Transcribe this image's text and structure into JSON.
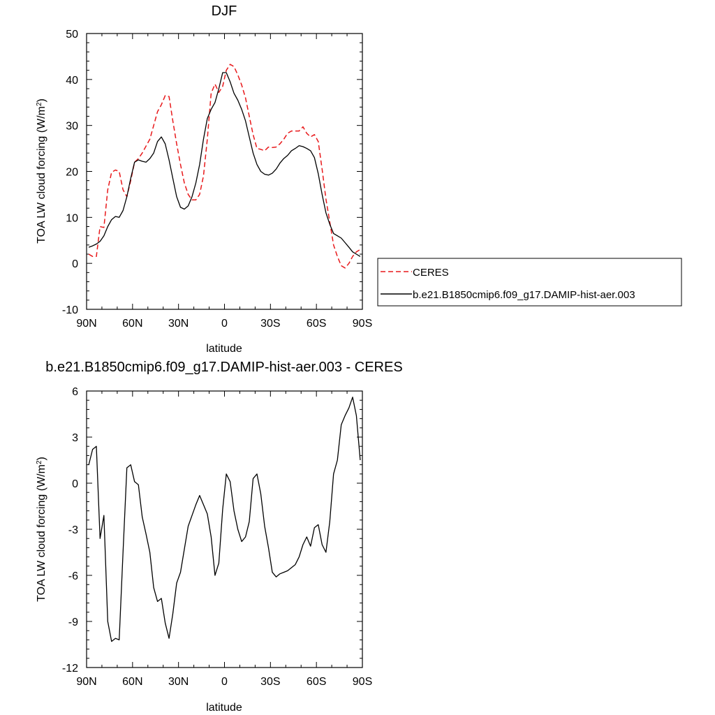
{
  "chart_data": [
    {
      "type": "line",
      "title": "DJF",
      "xlabel": "latitude",
      "ylabel": "TOA LW cloud forcing (W/m",
      "ylabel_sup": "2",
      "ylabel_end": ")",
      "xlim": [
        90,
        -90
      ],
      "ylim": [
        -10,
        50
      ],
      "xticks": [
        {
          "value": 90,
          "label": "90N"
        },
        {
          "value": 60,
          "label": "60N"
        },
        {
          "value": 30,
          "label": "30N"
        },
        {
          "value": 0,
          "label": "0"
        },
        {
          "value": -30,
          "label": "30S"
        },
        {
          "value": -60,
          "label": "60S"
        },
        {
          "value": -90,
          "label": "90S"
        }
      ],
      "yticks": [
        {
          "value": 50,
          "label": "50"
        },
        {
          "value": 40,
          "label": "40"
        },
        {
          "value": 30,
          "label": "30"
        },
        {
          "value": 20,
          "label": "20"
        },
        {
          "value": 10,
          "label": "10"
        },
        {
          "value": 0,
          "label": "0"
        },
        {
          "value": -10,
          "label": "-10"
        }
      ],
      "legend": {
        "placement": "right",
        "entries": [
          {
            "label": "CERES",
            "color": "#e8191b",
            "dash": "dashed"
          },
          {
            "label": "b.e21.B1850cmip6.f09_g17.DAMIP-hist-aer.003",
            "color": "#000000",
            "dash": "solid"
          }
        ]
      },
      "series": [
        {
          "name": "CERES",
          "color": "#e8191b",
          "dash": "dashed",
          "x": [
            88.6,
            86.1,
            83.6,
            81.2,
            78.7,
            76.2,
            73.7,
            71.2,
            68.7,
            66.2,
            63.7,
            61.2,
            58.7,
            56.2,
            53.7,
            51.2,
            48.7,
            46.2,
            43.7,
            41.2,
            38.7,
            36.2,
            33.7,
            31.2,
            28.7,
            26.2,
            23.7,
            21.2,
            18.7,
            16.2,
            13.7,
            11.2,
            8.7,
            6.2,
            3.7,
            1.2,
            -1.2,
            -3.7,
            -6.2,
            -8.7,
            -11.2,
            -13.7,
            -16.2,
            -18.7,
            -21.2,
            -23.7,
            -26.2,
            -28.7,
            -31.2,
            -33.7,
            -36.2,
            -38.7,
            -41.2,
            -43.7,
            -46.2,
            -48.7,
            -51.2,
            -53.7,
            -56.2,
            -58.7,
            -61.2,
            -63.7,
            -66.2,
            -68.7,
            -71.2,
            -73.7,
            -76.2,
            -78.7,
            -81.2,
            -83.6,
            -86.1,
            -88.6
          ],
          "values": [
            2.0,
            1.5,
            1.5,
            8.0,
            7.8,
            16.0,
            19.8,
            20.3,
            20.0,
            16.0,
            14.5,
            18.0,
            22.0,
            22.8,
            24.0,
            25.5,
            27.0,
            30.0,
            33.0,
            34.5,
            36.5,
            36.3,
            31.0,
            26.0,
            21.5,
            17.5,
            15.0,
            13.8,
            13.8,
            15.0,
            19.0,
            27.0,
            37.0,
            39.0,
            37.2,
            38.5,
            42.0,
            43.3,
            42.8,
            41.0,
            38.8,
            36.0,
            32.0,
            28.0,
            25.0,
            24.8,
            24.5,
            25.3,
            25.2,
            25.3,
            26.0,
            27.0,
            28.3,
            28.8,
            28.8,
            28.8,
            29.7,
            28.3,
            27.5,
            28.0,
            26.5,
            20.5,
            14.0,
            9.0,
            4.0,
            1.5,
            -0.5,
            -1.0,
            0.0,
            1.5,
            2.5,
            3.0
          ]
        },
        {
          "name": "b.e21.B1850cmip6.f09_g17.DAMIP-hist-aer.003",
          "color": "#000000",
          "dash": "solid",
          "x": [
            88.6,
            86.1,
            83.6,
            81.2,
            78.7,
            76.2,
            73.7,
            71.2,
            68.7,
            66.2,
            63.7,
            61.2,
            58.7,
            56.2,
            53.7,
            51.2,
            48.7,
            46.2,
            43.7,
            41.2,
            38.7,
            36.2,
            33.7,
            31.2,
            28.7,
            26.2,
            23.7,
            21.2,
            18.7,
            16.2,
            13.7,
            11.2,
            8.7,
            6.2,
            3.7,
            1.2,
            -1.2,
            -3.7,
            -6.2,
            -8.7,
            -11.2,
            -13.7,
            -16.2,
            -18.7,
            -21.2,
            -23.7,
            -26.2,
            -28.7,
            -31.2,
            -33.7,
            -36.2,
            -38.7,
            -41.2,
            -43.7,
            -46.2,
            -48.7,
            -51.2,
            -53.7,
            -56.2,
            -58.7,
            -61.2,
            -63.7,
            -66.2,
            -68.7,
            -71.2,
            -73.7,
            -76.2,
            -78.7,
            -81.2,
            -83.6,
            -86.1,
            -88.6
          ],
          "values": [
            3.5,
            3.8,
            4.2,
            4.8,
            6.0,
            8.0,
            9.5,
            10.2,
            10.0,
            11.5,
            14.5,
            18.5,
            22.0,
            22.5,
            22.2,
            22.0,
            22.8,
            24.0,
            26.5,
            27.5,
            26.0,
            22.5,
            18.5,
            14.5,
            12.2,
            11.8,
            12.5,
            14.5,
            17.5,
            21.5,
            27.0,
            31.5,
            33.5,
            35.0,
            38.0,
            41.5,
            41.5,
            39.5,
            37.0,
            35.5,
            33.5,
            31.0,
            27.5,
            24.0,
            21.5,
            20.0,
            19.4,
            19.2,
            19.6,
            20.5,
            21.8,
            22.8,
            23.5,
            24.5,
            25.0,
            25.6,
            25.4,
            25.0,
            24.5,
            23.0,
            19.5,
            15.0,
            11.0,
            8.5,
            6.5,
            6.0,
            5.5,
            4.5,
            3.5,
            2.5,
            2.0,
            1.5
          ]
        }
      ]
    },
    {
      "type": "line",
      "title": "b.e21.B1850cmip6.f09_g17.DAMIP-hist-aer.003 - CERES",
      "xlabel": "latitude",
      "ylabel": "TOA LW cloud forcing (W/m",
      "ylabel_sup": "2",
      "ylabel_end": ")",
      "xlim": [
        90,
        -90
      ],
      "ylim": [
        -12,
        6
      ],
      "xticks": [
        {
          "value": 90,
          "label": "90N"
        },
        {
          "value": 60,
          "label": "60N"
        },
        {
          "value": 30,
          "label": "30N"
        },
        {
          "value": 0,
          "label": "0"
        },
        {
          "value": -30,
          "label": "30S"
        },
        {
          "value": -60,
          "label": "60S"
        },
        {
          "value": -90,
          "label": "90S"
        }
      ],
      "yticks": [
        {
          "value": 6,
          "label": "6"
        },
        {
          "value": 3,
          "label": "3"
        },
        {
          "value": 0,
          "label": "0"
        },
        {
          "value": -3,
          "label": "-3"
        },
        {
          "value": -6,
          "label": "-6"
        },
        {
          "value": -9,
          "label": "-9"
        },
        {
          "value": -12,
          "label": "-12"
        }
      ],
      "series": [
        {
          "color": "#000000",
          "dash": "solid",
          "x": [
            88.6,
            86.1,
            83.6,
            81.2,
            78.7,
            76.2,
            73.7,
            71.2,
            68.7,
            66.2,
            63.7,
            61.2,
            58.7,
            56.2,
            53.7,
            51.2,
            48.7,
            46.2,
            43.7,
            41.2,
            38.7,
            36.2,
            33.7,
            31.2,
            28.7,
            26.2,
            23.7,
            21.2,
            18.7,
            16.2,
            13.7,
            11.2,
            8.7,
            6.2,
            3.7,
            1.2,
            -1.2,
            -3.7,
            -6.2,
            -8.7,
            -11.2,
            -13.7,
            -16.2,
            -18.7,
            -21.2,
            -23.7,
            -26.2,
            -28.7,
            -31.2,
            -33.7,
            -36.2,
            -38.7,
            -41.2,
            -43.7,
            -46.2,
            -48.7,
            -51.2,
            -53.7,
            -56.2,
            -58.7,
            -61.2,
            -63.7,
            -66.2,
            -68.7,
            -71.2,
            -73.7,
            -76.2,
            -78.7,
            -81.2,
            -83.6,
            -86.1,
            -88.6
          ],
          "values": [
            1.2,
            2.2,
            2.4,
            -3.6,
            -2.1,
            -9.0,
            -10.3,
            -10.1,
            -10.2,
            -4.5,
            1.0,
            1.2,
            0.1,
            -0.1,
            -2.2,
            -3.3,
            -4.5,
            -6.8,
            -7.7,
            -7.5,
            -9.1,
            -10.1,
            -8.5,
            -6.5,
            -5.8,
            -4.3,
            -2.8,
            -2.1,
            -1.4,
            -0.8,
            -1.4,
            -2.0,
            -3.5,
            -6.0,
            -5.2,
            -1.7,
            0.6,
            0.1,
            -1.8,
            -3.0,
            -3.8,
            -3.5,
            -2.5,
            0.3,
            0.6,
            -0.7,
            -2.8,
            -4.2,
            -5.8,
            -6.1,
            -5.9,
            -5.8,
            -5.7,
            -5.5,
            -5.3,
            -4.8,
            -4.0,
            -3.5,
            -4.1,
            -2.9,
            -2.7,
            -4.0,
            -4.5,
            -2.5,
            0.6,
            1.5,
            3.8,
            4.4,
            4.9,
            5.6,
            4.4,
            1.5
          ]
        }
      ]
    }
  ]
}
